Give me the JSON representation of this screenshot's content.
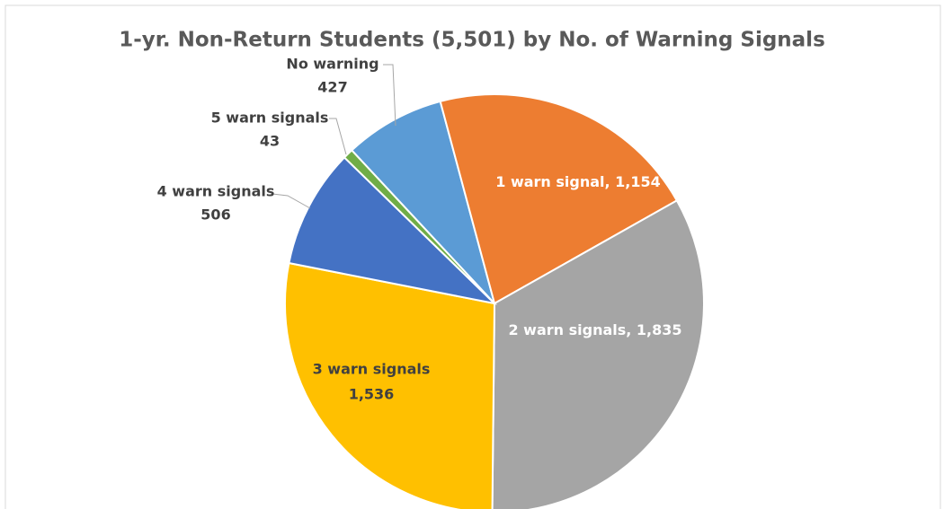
{
  "chart_data": {
    "type": "pie",
    "title": "1-yr. Non-Return Students (5,501) by No. of Warning Signals",
    "categories": [
      "No warning",
      "1 warn signal",
      "2 warn signals",
      "3 warn signals",
      "4 warn signals",
      "5 warn signals"
    ],
    "values": [
      427,
      1154,
      1835,
      1536,
      506,
      43
    ],
    "value_labels": [
      "427",
      "1,154",
      "1,835",
      "1,536",
      "506",
      "43"
    ],
    "colors": [
      "#5b9bd5",
      "#ed7d31",
      "#a5a5a5",
      "#ffc000",
      "#4472c4",
      "#70ad47"
    ]
  }
}
